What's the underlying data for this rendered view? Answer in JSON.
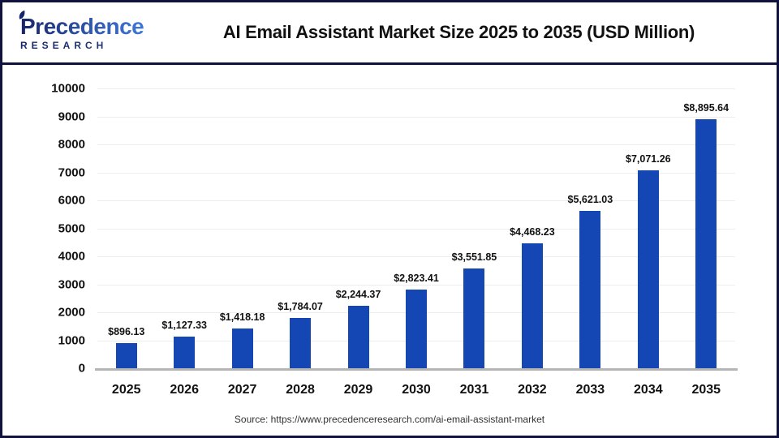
{
  "header": {
    "logo_primary": "Precedence",
    "logo_secondary": "RESEARCH",
    "title": "AI Email Assistant Market Size 2025 to 2035 (USD Million)"
  },
  "chart_data": {
    "type": "bar",
    "title": "AI Email Assistant Market Size 2025 to 2035 (USD Million)",
    "categories": [
      "2025",
      "2026",
      "2027",
      "2028",
      "2029",
      "2030",
      "2031",
      "2032",
      "2033",
      "2034",
      "2035"
    ],
    "values": [
      896.13,
      1127.33,
      1418.18,
      1784.07,
      2244.37,
      2823.41,
      3551.85,
      4468.23,
      5621.03,
      7071.26,
      8895.64
    ],
    "value_labels": [
      "$896.13",
      "$1,127.33",
      "$1,418.18",
      "$1,784.07",
      "$2,244.37",
      "$2,823.41",
      "$3,551.85",
      "$4,468.23",
      "$5,621.03",
      "$7,071.26",
      "$8,895.64"
    ],
    "xlabel": "",
    "ylabel": "",
    "ylim": [
      0,
      10000
    ],
    "yticks": [
      0,
      1000,
      2000,
      3000,
      4000,
      5000,
      6000,
      7000,
      8000,
      9000,
      10000
    ],
    "grid": "horizontal",
    "legend": "none",
    "bar_color": "#1446b4"
  },
  "footer": {
    "source": "Source: https://www.precedenceresearch.com/ai-email-assistant-market"
  },
  "colors": {
    "bar": "#1446b4",
    "frame_border": "#12123f",
    "gridline": "#ededed",
    "axis_baseline": "#b5b5b5",
    "title_text": "#111111",
    "source_text": "#333333",
    "logo_dark": "#16246b",
    "logo_light": "#3f76d6"
  }
}
